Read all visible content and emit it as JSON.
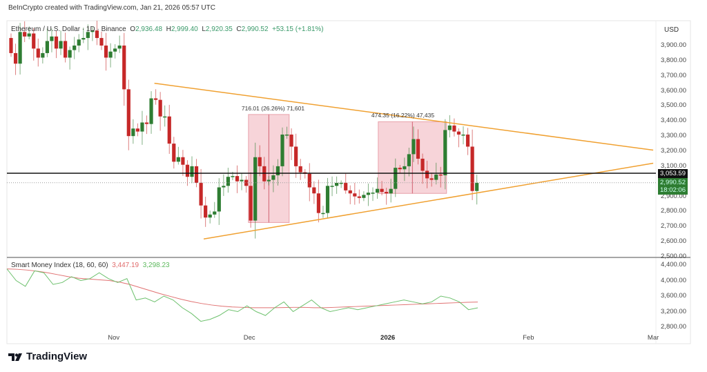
{
  "header": {
    "credit": "BeInCrypto created with TradingView.com, Jan 21, 2026 05:57 UTC"
  },
  "legend": {
    "symbol": "Ethereum / U.S. Dollar · 1D · Binance",
    "open_label": "O",
    "open": "2,936.48",
    "high_label": "H",
    "high": "2,999.40",
    "low_label": "L",
    "low": "2,920.35",
    "close_label": "C",
    "close": "2,990.52",
    "change": "+53.15 (+1.81%)"
  },
  "indicator": {
    "name": "Smart Money Index (18, 60, 60)",
    "value1": "3,447.19",
    "value2": "3,298.23"
  },
  "price_axis": {
    "currency": "USD",
    "ticks": [
      "3,900.00",
      "3,800.00",
      "3,700.00",
      "3,600.00",
      "3,500.00",
      "3,400.00",
      "3,300.00",
      "3,200.00",
      "3,100.00",
      "2,900.00",
      "2,800.00",
      "2,700.00",
      "2,600.00",
      "2,500.00"
    ],
    "tick_values": [
      3900,
      3800,
      3700,
      3600,
      3500,
      3400,
      3300,
      3200,
      3100,
      2900,
      2800,
      2700,
      2600,
      2500
    ],
    "marked_level": "3,053.59",
    "marked_level_value": 3053.59,
    "last_price": "2,990.52",
    "last_price_value": 2990.52,
    "countdown": "18:02:06"
  },
  "indicator_axis": {
    "ticks": [
      "4,400.00",
      "4,000.00",
      "3,600.00",
      "3,200.00",
      "2,800.00"
    ],
    "tick_values": [
      4400,
      4000,
      3600,
      3200,
      2800
    ]
  },
  "time_axis": [
    {
      "label": "Nov",
      "day": 22.7,
      "bold": false
    },
    {
      "label": "Dec",
      "day": 52.7,
      "bold": false
    },
    {
      "label": "2026",
      "day": 83.3,
      "bold": true
    },
    {
      "label": "Feb",
      "day": 114.4,
      "bold": false
    },
    {
      "label": "Mar",
      "day": 142,
      "bold": false
    }
  ],
  "measurements": [
    {
      "text": "716.01 (26.26%) 71,601",
      "from_day": 52.5,
      "to_day": 61.5,
      "low": 2727,
      "high": 3443
    },
    {
      "text": "474.35 (16.22%) 47,435",
      "from_day": 81.2,
      "to_day": 96.3,
      "low": 2920,
      "high": 3395
    }
  ],
  "trendlines": [
    {
      "from": [
        31.7,
        3650
      ],
      "to": [
        142,
        3207
      ]
    },
    {
      "from": [
        42.6,
        2618
      ],
      "to": [
        142,
        3120
      ]
    }
  ],
  "colors": {
    "up": "#2e7d32",
    "down": "#c62828",
    "trend": "#f0a030",
    "measure": "#f4c6cc",
    "smi_slow": "#e07070",
    "smi_fast": "#6cc06c"
  },
  "brand": {
    "name": "TradingView"
  },
  "chart_data": {
    "type": "candlestick",
    "title": "Ethereum / U.S. Dollar · 1D · Binance",
    "ylabel": "USD",
    "ylim": [
      2500,
      3990
    ],
    "first_open": 3950,
    "closes": [
      3850,
      3780,
      3990,
      3960,
      3980,
      3880,
      3820,
      3850,
      3930,
      3960,
      3880,
      3930,
      3820,
      3870,
      3900,
      3940,
      3950,
      3990,
      4000,
      3950,
      3900,
      3820,
      3860,
      3880,
      3900,
      3610,
      3300,
      3350,
      3330,
      3390,
      3380,
      3550,
      3540,
      3430,
      3430,
      3250,
      3130,
      3160,
      3110,
      3030,
      3100,
      2990,
      2840,
      2760,
      2780,
      2800,
      2960,
      2970,
      3030,
      3035,
      3000,
      3010,
      2970,
      2740,
      3160,
      3100,
      3000,
      3010,
      3040,
      3100,
      3310,
      3310,
      3230,
      3100,
      3060,
      3050,
      2960,
      2920,
      2790,
      2790,
      2970,
      2970,
      2990,
      2990,
      2940,
      2920,
      2900,
      2890,
      2910,
      2925,
      2925,
      2950,
      2930,
      2920,
      2950,
      3090,
      3080,
      3100,
      3180,
      3280,
      3150,
      3070,
      3020,
      3010,
      3045,
      3040,
      3340,
      3370,
      3330,
      3310,
      3310,
      3230,
      2936,
      2990
    ],
    "smi_slow": [
      4300,
      4290,
      4270,
      4240,
      4200,
      4150,
      4100,
      4060,
      4040,
      4020,
      4000,
      3960,
      3900,
      3820,
      3740,
      3660,
      3590,
      3520,
      3460,
      3410,
      3370,
      3340,
      3320,
      3310,
      3300,
      3300,
      3300,
      3305,
      3310,
      3310,
      3300,
      3300,
      3310,
      3320,
      3330,
      3340,
      3350,
      3360,
      3370,
      3380,
      3390,
      3400,
      3410,
      3420,
      3430,
      3440,
      3447
    ],
    "smi_fast": [
      4300,
      4000,
      3850,
      4250,
      4200,
      3900,
      3950,
      4100,
      4000,
      4050,
      4200,
      4050,
      3950,
      4050,
      3500,
      3550,
      3450,
      3600,
      3500,
      3300,
      3150,
      2950,
      3000,
      3100,
      3250,
      3200,
      3350,
      3200,
      3100,
      3300,
      3450,
      3200,
      3350,
      3500,
      3300,
      3200,
      3250,
      3300,
      3250,
      3300,
      3350,
      3400,
      3450,
      3500,
      3450,
      3400,
      3450,
      3600,
      3550,
      3450,
      3250,
      3298
    ]
  }
}
